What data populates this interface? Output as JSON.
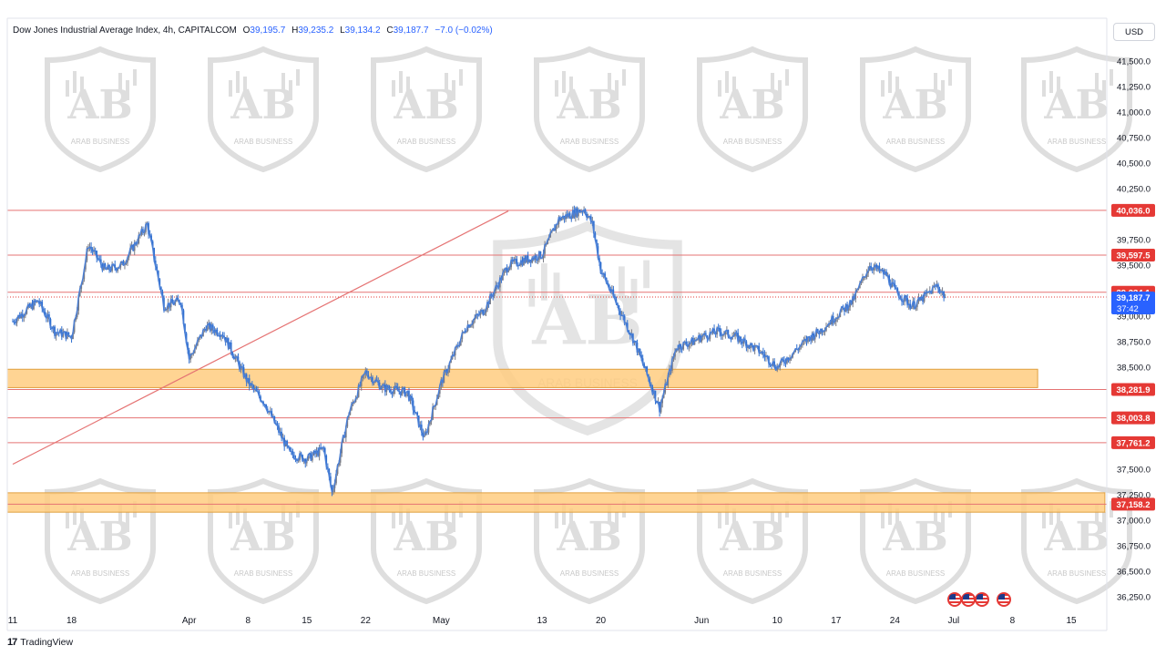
{
  "header": {
    "symbol_label": "Dow Jones Industrial Average Index, 4h, CAPITALCOM",
    "open_label": "O",
    "open": "39,195.7",
    "high_label": "H",
    "high": "39,235.2",
    "low_label": "L",
    "low": "39,134.2",
    "close_label": "C",
    "close": "39,187.7",
    "change": "−7.0 (−0.02%)"
  },
  "currency": "USD",
  "footer": {
    "logo_text": "17",
    "brand": "TradingView"
  },
  "watermark_text": "ARAB BUSINESS",
  "watermark_monogram": "AB",
  "colors": {
    "candle_up": "#787b86",
    "candle_down": "#2f6fd0",
    "price_line": "#4a7fd6",
    "resistance_line": "#e57373",
    "zone_fill": "#ffcc80",
    "zone_border": "#e0a040",
    "price_tag_red": "#e53935",
    "price_tag_blue": "#2962ff",
    "trend_line": "#e57373"
  },
  "events": {
    "flag_icon": "us-flag-icon",
    "count": 4
  },
  "chart_data": {
    "type": "candlestick",
    "interval": "4h",
    "y_axis": {
      "ylim": [
        36100,
        41650
      ],
      "ticks": [
        {
          "v": 41500,
          "label": "41,500.0"
        },
        {
          "v": 41250,
          "label": "41,250.0"
        },
        {
          "v": 41000,
          "label": "41,000.0"
        },
        {
          "v": 40750,
          "label": "40,750.0"
        },
        {
          "v": 40500,
          "label": "40,500.0"
        },
        {
          "v": 40250,
          "label": "40,250.0"
        },
        {
          "v": 39750,
          "label": "39,750.0"
        },
        {
          "v": 39500,
          "label": "39,500.0"
        },
        {
          "v": 39000,
          "label": "39,000.0"
        },
        {
          "v": 38750,
          "label": "38,750.0"
        },
        {
          "v": 38500,
          "label": "38,500.0"
        },
        {
          "v": 37500,
          "label": "37,500.0"
        },
        {
          "v": 37250,
          "label": "37,250.0"
        },
        {
          "v": 37000,
          "label": "37,000.0"
        },
        {
          "v": 36750,
          "label": "36,750.0"
        },
        {
          "v": 36500,
          "label": "36,500.0"
        },
        {
          "v": 36250,
          "label": "36,250.0"
        }
      ]
    },
    "x_axis": {
      "ticks": [
        {
          "d": 0,
          "label": "11"
        },
        {
          "d": 7,
          "label": "18"
        },
        {
          "d": 21,
          "label": "Apr"
        },
        {
          "d": 28,
          "label": "8"
        },
        {
          "d": 35,
          "label": "15"
        },
        {
          "d": 42,
          "label": "22"
        },
        {
          "d": 51,
          "label": "May"
        },
        {
          "d": 63,
          "label": "13"
        },
        {
          "d": 70,
          "label": "20"
        },
        {
          "d": 82,
          "label": "Jun"
        },
        {
          "d": 91,
          "label": "10"
        },
        {
          "d": 98,
          "label": "17"
        },
        {
          "d": 105,
          "label": "24"
        },
        {
          "d": 112,
          "label": "Jul"
        },
        {
          "d": 119,
          "label": "8"
        },
        {
          "d": 126,
          "label": "15"
        }
      ]
    },
    "levels": [
      {
        "value": 40036.0,
        "label": "40,036.0"
      },
      {
        "value": 39597.5,
        "label": "39,597.5"
      },
      {
        "value": 39234.1,
        "label": "39,234.1"
      },
      {
        "value": 38281.9,
        "label": "38,281.9"
      },
      {
        "value": 38003.8,
        "label": "38,003.8"
      },
      {
        "value": 37761.2,
        "label": "37,761.2"
      },
      {
        "value": 37158.2,
        "label": "37,158.2"
      }
    ],
    "current_price": {
      "value": 39187.7,
      "label": "39,187.7",
      "countdown": "37:42"
    },
    "zones": [
      {
        "from": 38300,
        "to": 38480,
        "d_start": 0,
        "d_end": 122
      },
      {
        "from": 37080,
        "to": 37270,
        "d_start": 0,
        "d_end": 130
      }
    ],
    "trendline": {
      "d1": 0,
      "v1": 37550,
      "d2": 59,
      "v2": 40030
    },
    "series_days": [
      0,
      3,
      5,
      7,
      9,
      11,
      13,
      16,
      18,
      20,
      21,
      23,
      25,
      28,
      30,
      33,
      35,
      37,
      38,
      40,
      42,
      44,
      47,
      49,
      51,
      54,
      56,
      59,
      61,
      63,
      65,
      68,
      69,
      70,
      72,
      74,
      77,
      79,
      81,
      82,
      84,
      86,
      89,
      91,
      93,
      95,
      96,
      98,
      100,
      102,
      104,
      105,
      107,
      108,
      110,
      111
    ],
    "series_close": [
      38950,
      39150,
      38850,
      38800,
      39700,
      39450,
      39500,
      39900,
      39100,
      39150,
      38580,
      38900,
      38830,
      38350,
      38150,
      37650,
      37600,
      37700,
      37270,
      38050,
      38450,
      38300,
      38250,
      37800,
      38350,
      38900,
      39050,
      39500,
      39550,
      39600,
      39950,
      40050,
      39900,
      39450,
      39100,
      38750,
      38100,
      38700,
      38750,
      38800,
      38850,
      38800,
      38650,
      38500,
      38650,
      38800,
      38850,
      39000,
      39150,
      39500,
      39400,
      39250,
      39100,
      39150,
      39300,
      39187.7
    ]
  }
}
